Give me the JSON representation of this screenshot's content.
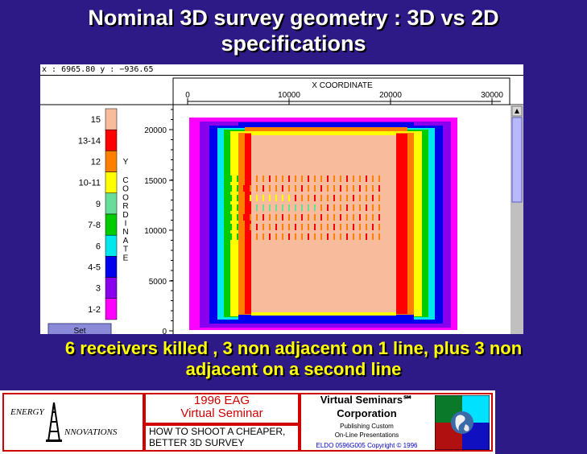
{
  "slide": {
    "title_line1": "Nominal 3D survey geometry : 3D vs 2D",
    "title_line2": "specifications",
    "caption_line1": "6  receivers killed , 3 non adjacent on 1 line, plus 3 non",
    "caption_line2": "adjacent on a second line"
  },
  "viewer": {
    "coord_readout": "x : 6965.80 y : −936.65",
    "x_axis_title": "X COORDINATE",
    "x_ticks": [
      "0",
      "10000",
      "20000",
      "30000"
    ],
    "y_axis_title_letters": [
      "Y",
      "C",
      "O",
      "O",
      "R",
      "D",
      "I",
      "N",
      "A",
      "T",
      "E"
    ],
    "y_ticks": [
      "20000",
      "15000",
      "10000",
      "5000",
      "0"
    ],
    "set_button_label": "Set",
    "legend": [
      {
        "label": "15",
        "color": "#f8bc9c"
      },
      {
        "label": "13-14",
        "color": "#ff0000"
      },
      {
        "label": "12",
        "color": "#ff8000"
      },
      {
        "label": "10-11",
        "color": "#ffff00"
      },
      {
        "label": "9",
        "color": "#66dd99"
      },
      {
        "label": "7-8",
        "color": "#00cc00"
      },
      {
        "label": "6",
        "color": "#00e8ee"
      },
      {
        "label": "4-5",
        "color": "#0000ee"
      },
      {
        "label": "3",
        "color": "#8800ee"
      },
      {
        "label": "1-2",
        "color": "#ff00ff"
      }
    ],
    "scrollbar_up_icon": "scroll-up-arrow-icon"
  },
  "footer": {
    "company_left_line1": "ENERGY",
    "company_left_line2": "NNOVATIONS",
    "event_line1": "1996 EAG",
    "event_line2": "Virtual Seminar",
    "talk_line1": "HOW TO SHOOT A CHEAPER,",
    "talk_line2": "BETTER 3D SURVEY",
    "company_right_line1": "Virtual Seminars℠",
    "company_right_line2": "Corporation",
    "tagline_line1": "Publishing Custom",
    "tagline_line2": "On-Line Presentations",
    "copyright": "ELDO 0596G005 Copyright © 1996",
    "globe_icon": "globe-icon",
    "derrick_icon": "derrick-icon"
  }
}
